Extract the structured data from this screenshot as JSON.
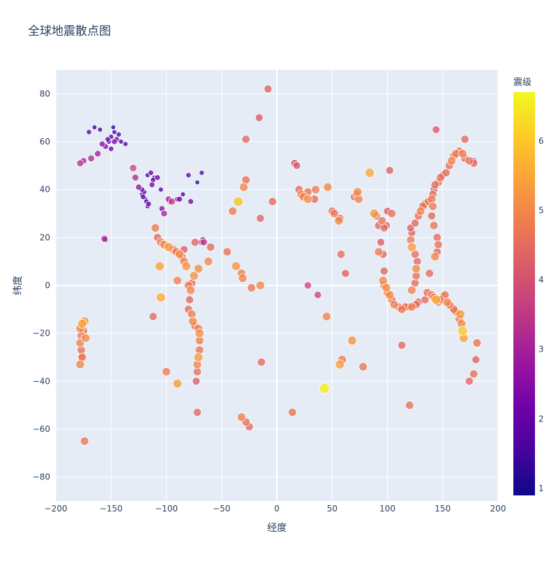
{
  "chart_data": {
    "type": "scatter",
    "title": "全球地震散点图",
    "xlabel": "经度",
    "ylabel": "纬度",
    "xlim": [
      -200,
      200
    ],
    "ylim": [
      -90,
      90
    ],
    "xticks": [
      -200,
      -150,
      -100,
      -50,
      0,
      50,
      100,
      150,
      200
    ],
    "yticks": [
      -80,
      -60,
      -40,
      -20,
      0,
      20,
      40,
      60,
      80
    ],
    "grid": true,
    "colorbar": {
      "title": "震级",
      "range": [
        0.9,
        6.7
      ],
      "ticks": [
        1,
        2,
        3,
        4,
        5,
        6
      ],
      "colorscale": [
        "#0d0887",
        "#46039f",
        "#7201a8",
        "#9c179e",
        "#bd3786",
        "#d8576b",
        "#ed7953",
        "#fb9f3a",
        "#fdca26",
        "#f0f921"
      ]
    },
    "marker_size": "magnitude",
    "points": [
      [
        -147,
        64,
        1.5
      ],
      [
        -150,
        62,
        1.8
      ],
      [
        -145,
        61,
        2.0
      ],
      [
        -152,
        60,
        1.6
      ],
      [
        -148,
        66,
        1.4
      ],
      [
        -155,
        58,
        2.2
      ],
      [
        -143,
        63,
        1.7
      ],
      [
        -150,
        57,
        2.0
      ],
      [
        -160,
        65,
        1.6
      ],
      [
        -165,
        66,
        1.5
      ],
      [
        -170,
        64,
        1.8
      ],
      [
        -147,
        60,
        2.4
      ],
      [
        -153,
        61,
        1.9
      ],
      [
        -141,
        60,
        1.5
      ],
      [
        -137,
        59,
        1.6
      ],
      [
        -158,
        59,
        2.6
      ],
      [
        -162,
        55,
        3.0
      ],
      [
        -168,
        53,
        3.3
      ],
      [
        -175,
        52,
        3.1
      ],
      [
        -178,
        51,
        3.4
      ],
      [
        -155,
        19,
        2.2
      ],
      [
        -156,
        19.5,
        3.2
      ],
      [
        -118,
        35,
        1.8
      ],
      [
        -117,
        33,
        1.5
      ],
      [
        -121,
        37,
        2.0
      ],
      [
        -122,
        38,
        1.6
      ],
      [
        -116,
        34,
        2.2
      ],
      [
        -119,
        36,
        1.4
      ],
      [
        -122,
        40,
        1.9
      ],
      [
        -120,
        39,
        1.7
      ],
      [
        -112,
        44,
        2.0
      ],
      [
        -111,
        45,
        1.6
      ],
      [
        -114,
        47,
        2.1
      ],
      [
        -117,
        46,
        1.5
      ],
      [
        -113,
        42,
        2.3
      ],
      [
        -105,
        40,
        1.6
      ],
      [
        -104,
        32,
        2.5
      ],
      [
        -98,
        36,
        2.8
      ],
      [
        -97,
        35,
        2.4
      ],
      [
        -90,
        36,
        2.0
      ],
      [
        -85,
        38,
        1.5
      ],
      [
        -72,
        43,
        1.4
      ],
      [
        -68,
        47,
        1.6
      ],
      [
        -80,
        46,
        1.8
      ],
      [
        -130,
        49,
        3.8
      ],
      [
        -128,
        45,
        3.3
      ],
      [
        -125,
        41,
        2.7
      ],
      [
        -108,
        45,
        2.2
      ],
      [
        -102,
        30,
        3.1
      ],
      [
        -95,
        35,
        3.6
      ],
      [
        -88,
        36,
        2.4
      ],
      [
        -78,
        35,
        2.3
      ],
      [
        -66,
        18,
        3.6
      ],
      [
        -67,
        19,
        2.8
      ],
      [
        -68,
        18,
        3.0
      ],
      [
        -110,
        24,
        4.8
      ],
      [
        -108,
        20,
        4.4
      ],
      [
        -105,
        18,
        4.9
      ],
      [
        -102,
        17,
        5.0
      ],
      [
        -98,
        16,
        5.3
      ],
      [
        -94,
        15,
        4.6
      ],
      [
        -91,
        14,
        4.8
      ],
      [
        -88,
        13,
        5.1
      ],
      [
        -86,
        12,
        4.7
      ],
      [
        -84,
        10,
        4.9
      ],
      [
        -82,
        8,
        5.2
      ],
      [
        -106,
        8,
        5.4
      ],
      [
        -105,
        -5,
        5.6
      ],
      [
        -112,
        -13,
        4.5
      ],
      [
        -100,
        -36,
        4.8
      ],
      [
        -90,
        -41,
        5.3
      ],
      [
        -80,
        0,
        4.7
      ],
      [
        -78,
        -2,
        5.0
      ],
      [
        -79,
        -6,
        4.4
      ],
      [
        -80,
        -10,
        4.5
      ],
      [
        -77,
        -12,
        4.8
      ],
      [
        -76,
        -15,
        5.0
      ],
      [
        -74,
        -17,
        4.6
      ],
      [
        -71,
        -18,
        4.9
      ],
      [
        -70,
        -20,
        5.1
      ],
      [
        -70,
        -23,
        4.8
      ],
      [
        -70,
        -27,
        4.7
      ],
      [
        -71,
        -30,
        5.3
      ],
      [
        -72,
        -33,
        4.9
      ],
      [
        -72,
        -36,
        4.6
      ],
      [
        -73,
        -40,
        4.2
      ],
      [
        -72,
        -53,
        4.4
      ],
      [
        -60,
        16,
        4.5
      ],
      [
        -62,
        10,
        5.0
      ],
      [
        -74,
        18,
        4.4
      ],
      [
        -71,
        7,
        5.1
      ],
      [
        -75,
        4,
        5.2
      ],
      [
        -77,
        1,
        4.6
      ],
      [
        -84,
        15,
        4.2
      ],
      [
        -90,
        2,
        4.9
      ],
      [
        -178,
        -18,
        5.0
      ],
      [
        -177,
        -21,
        4.8
      ],
      [
        -176,
        -16,
        5.5
      ],
      [
        -175,
        -19,
        4.7
      ],
      [
        -174,
        -15,
        5.2
      ],
      [
        -178,
        -24,
        4.9
      ],
      [
        -177,
        -27,
        4.6
      ],
      [
        -176,
        -30,
        4.8
      ],
      [
        -178,
        -33,
        5.0
      ],
      [
        -173,
        -22,
        5.1
      ],
      [
        -177,
        -30,
        4.3
      ],
      [
        -174,
        -65,
        4.7
      ],
      [
        -40,
        31,
        4.8
      ],
      [
        -35,
        35,
        5.9
      ],
      [
        -30,
        41,
        5.0
      ],
      [
        -28,
        44,
        4.6
      ],
      [
        -28,
        61,
        4.4
      ],
      [
        -16,
        70,
        4.2
      ],
      [
        -8,
        82,
        4.3
      ],
      [
        -4,
        35,
        4.5
      ],
      [
        -15,
        28,
        4.4
      ],
      [
        -45,
        14,
        4.6
      ],
      [
        -37,
        8,
        5.2
      ],
      [
        -32,
        5,
        4.8
      ],
      [
        -31,
        3,
        5.0
      ],
      [
        -23,
        -1,
        4.7
      ],
      [
        -15,
        0,
        5.0
      ],
      [
        -32,
        -55,
        4.9
      ],
      [
        -28,
        -57,
        4.6
      ],
      [
        -25,
        -59,
        4.4
      ],
      [
        -14,
        -32,
        4.5
      ],
      [
        16,
        51,
        4.0
      ],
      [
        18,
        50,
        4.1
      ],
      [
        20,
        40,
        4.5
      ],
      [
        22,
        38,
        4.8
      ],
      [
        24,
        37,
        4.9
      ],
      [
        28,
        39,
        4.6
      ],
      [
        28,
        36,
        5.1
      ],
      [
        35,
        40,
        4.8
      ],
      [
        34,
        36,
        4.5
      ],
      [
        46,
        41,
        5.0
      ],
      [
        50,
        31,
        4.6
      ],
      [
        52,
        30,
        4.8
      ],
      [
        56,
        27,
        5.0
      ],
      [
        57,
        28,
        4.4
      ],
      [
        62,
        5,
        4.3
      ],
      [
        58,
        13,
        4.5
      ],
      [
        45,
        -13,
        4.9
      ],
      [
        43,
        -43,
        6.5
      ],
      [
        57,
        -33,
        5.4
      ],
      [
        59,
        -31,
        4.8
      ],
      [
        78,
        -34,
        4.7
      ],
      [
        68,
        -23,
        5.2
      ],
      [
        28,
        0,
        3.8
      ],
      [
        37,
        -4,
        3.7
      ],
      [
        14,
        -53,
        4.6
      ],
      [
        70,
        37,
        4.4
      ],
      [
        72,
        38,
        4.7
      ],
      [
        73,
        39,
        5.1
      ],
      [
        74,
        36,
        4.9
      ],
      [
        84,
        47,
        5.5
      ],
      [
        88,
        30,
        5.3
      ],
      [
        90,
        29,
        4.5
      ],
      [
        92,
        25,
        4.4
      ],
      [
        95,
        27,
        4.6
      ],
      [
        97,
        24,
        4.5
      ],
      [
        99,
        25,
        4.3
      ],
      [
        100,
        31,
        4.2
      ],
      [
        104,
        30,
        4.6
      ],
      [
        102,
        48,
        4.3
      ],
      [
        94,
        18,
        4.2
      ],
      [
        96,
        13,
        4.4
      ],
      [
        92,
        14,
        4.8
      ],
      [
        97,
        6,
        4.4
      ],
      [
        96,
        2,
        5.0
      ],
      [
        97,
        0,
        4.7
      ],
      [
        99,
        -1,
        5.2
      ],
      [
        100,
        -3,
        4.8
      ],
      [
        102,
        -4,
        5.1
      ],
      [
        104,
        -6,
        4.6
      ],
      [
        106,
        -8,
        4.9
      ],
      [
        110,
        -9,
        4.5
      ],
      [
        113,
        -10,
        4.7
      ],
      [
        116,
        -9,
        4.6
      ],
      [
        119,
        -9,
        4.5
      ],
      [
        122,
        -9,
        4.8
      ],
      [
        126,
        -8,
        4.6
      ],
      [
        128,
        -7,
        4.4
      ],
      [
        122,
        -2,
        4.9
      ],
      [
        125,
        1,
        4.5
      ],
      [
        126,
        4,
        4.6
      ],
      [
        126,
        7,
        5.0
      ],
      [
        127,
        10,
        4.4
      ],
      [
        125,
        13,
        4.6
      ],
      [
        122,
        16,
        5.3
      ],
      [
        121,
        19,
        4.8
      ],
      [
        122,
        22,
        4.2
      ],
      [
        121,
        24,
        4.3
      ],
      [
        125,
        26,
        4.4
      ],
      [
        128,
        29,
        4.6
      ],
      [
        130,
        31,
        4.9
      ],
      [
        132,
        33,
        4.7
      ],
      [
        134,
        34,
        4.5
      ],
      [
        137,
        35,
        4.6
      ],
      [
        140,
        36,
        4.8
      ],
      [
        141,
        38,
        4.5
      ],
      [
        142,
        40,
        4.3
      ],
      [
        143,
        42,
        4.5
      ],
      [
        146,
        43,
        4.4
      ],
      [
        148,
        45,
        4.6
      ],
      [
        150,
        46,
        4.3
      ],
      [
        153,
        47,
        4.5
      ],
      [
        156,
        50,
        4.6
      ],
      [
        158,
        52,
        4.9
      ],
      [
        160,
        54,
        4.7
      ],
      [
        162,
        55,
        4.8
      ],
      [
        165,
        56,
        4.6
      ],
      [
        168,
        55,
        4.8
      ],
      [
        170,
        53,
        4.5
      ],
      [
        174,
        52,
        4.7
      ],
      [
        178,
        51,
        4.4
      ],
      [
        178,
        52,
        3.2
      ],
      [
        170,
        61,
        4.4
      ],
      [
        144,
        65,
        4.1
      ],
      [
        113,
        -25,
        4.4
      ],
      [
        120,
        -50,
        4.6
      ],
      [
        140,
        -4,
        4.7
      ],
      [
        142,
        -5,
        4.8
      ],
      [
        144,
        -6,
        5.6
      ],
      [
        146,
        -7,
        4.5
      ],
      [
        148,
        -6,
        4.9
      ],
      [
        150,
        -5,
        4.6
      ],
      [
        152,
        -4,
        4.7
      ],
      [
        154,
        -7,
        5.0
      ],
      [
        156,
        -8,
        4.8
      ],
      [
        158,
        -9,
        4.5
      ],
      [
        160,
        -10,
        4.7
      ],
      [
        162,
        -11,
        4.6
      ],
      [
        165,
        -14,
        4.8
      ],
      [
        167,
        -16,
        5.0
      ],
      [
        168,
        -19,
        6.0
      ],
      [
        169,
        -22,
        5.4
      ],
      [
        166,
        -12,
        5.3
      ],
      [
        134,
        -6,
        4.4
      ],
      [
        136,
        -3,
        4.6
      ],
      [
        138,
        5,
        4.5
      ],
      [
        143,
        12,
        5.0
      ],
      [
        145,
        14,
        4.4
      ],
      [
        146,
        17,
        4.6
      ],
      [
        145,
        20,
        4.5
      ],
      [
        142,
        25,
        4.7
      ],
      [
        140,
        29,
        4.4
      ],
      [
        141,
        33,
        4.8
      ],
      [
        181,
        -24,
        4.7
      ],
      [
        180,
        -31,
        4.3
      ],
      [
        178,
        -37,
        4.6
      ],
      [
        174,
        -40,
        4.4
      ]
    ]
  }
}
